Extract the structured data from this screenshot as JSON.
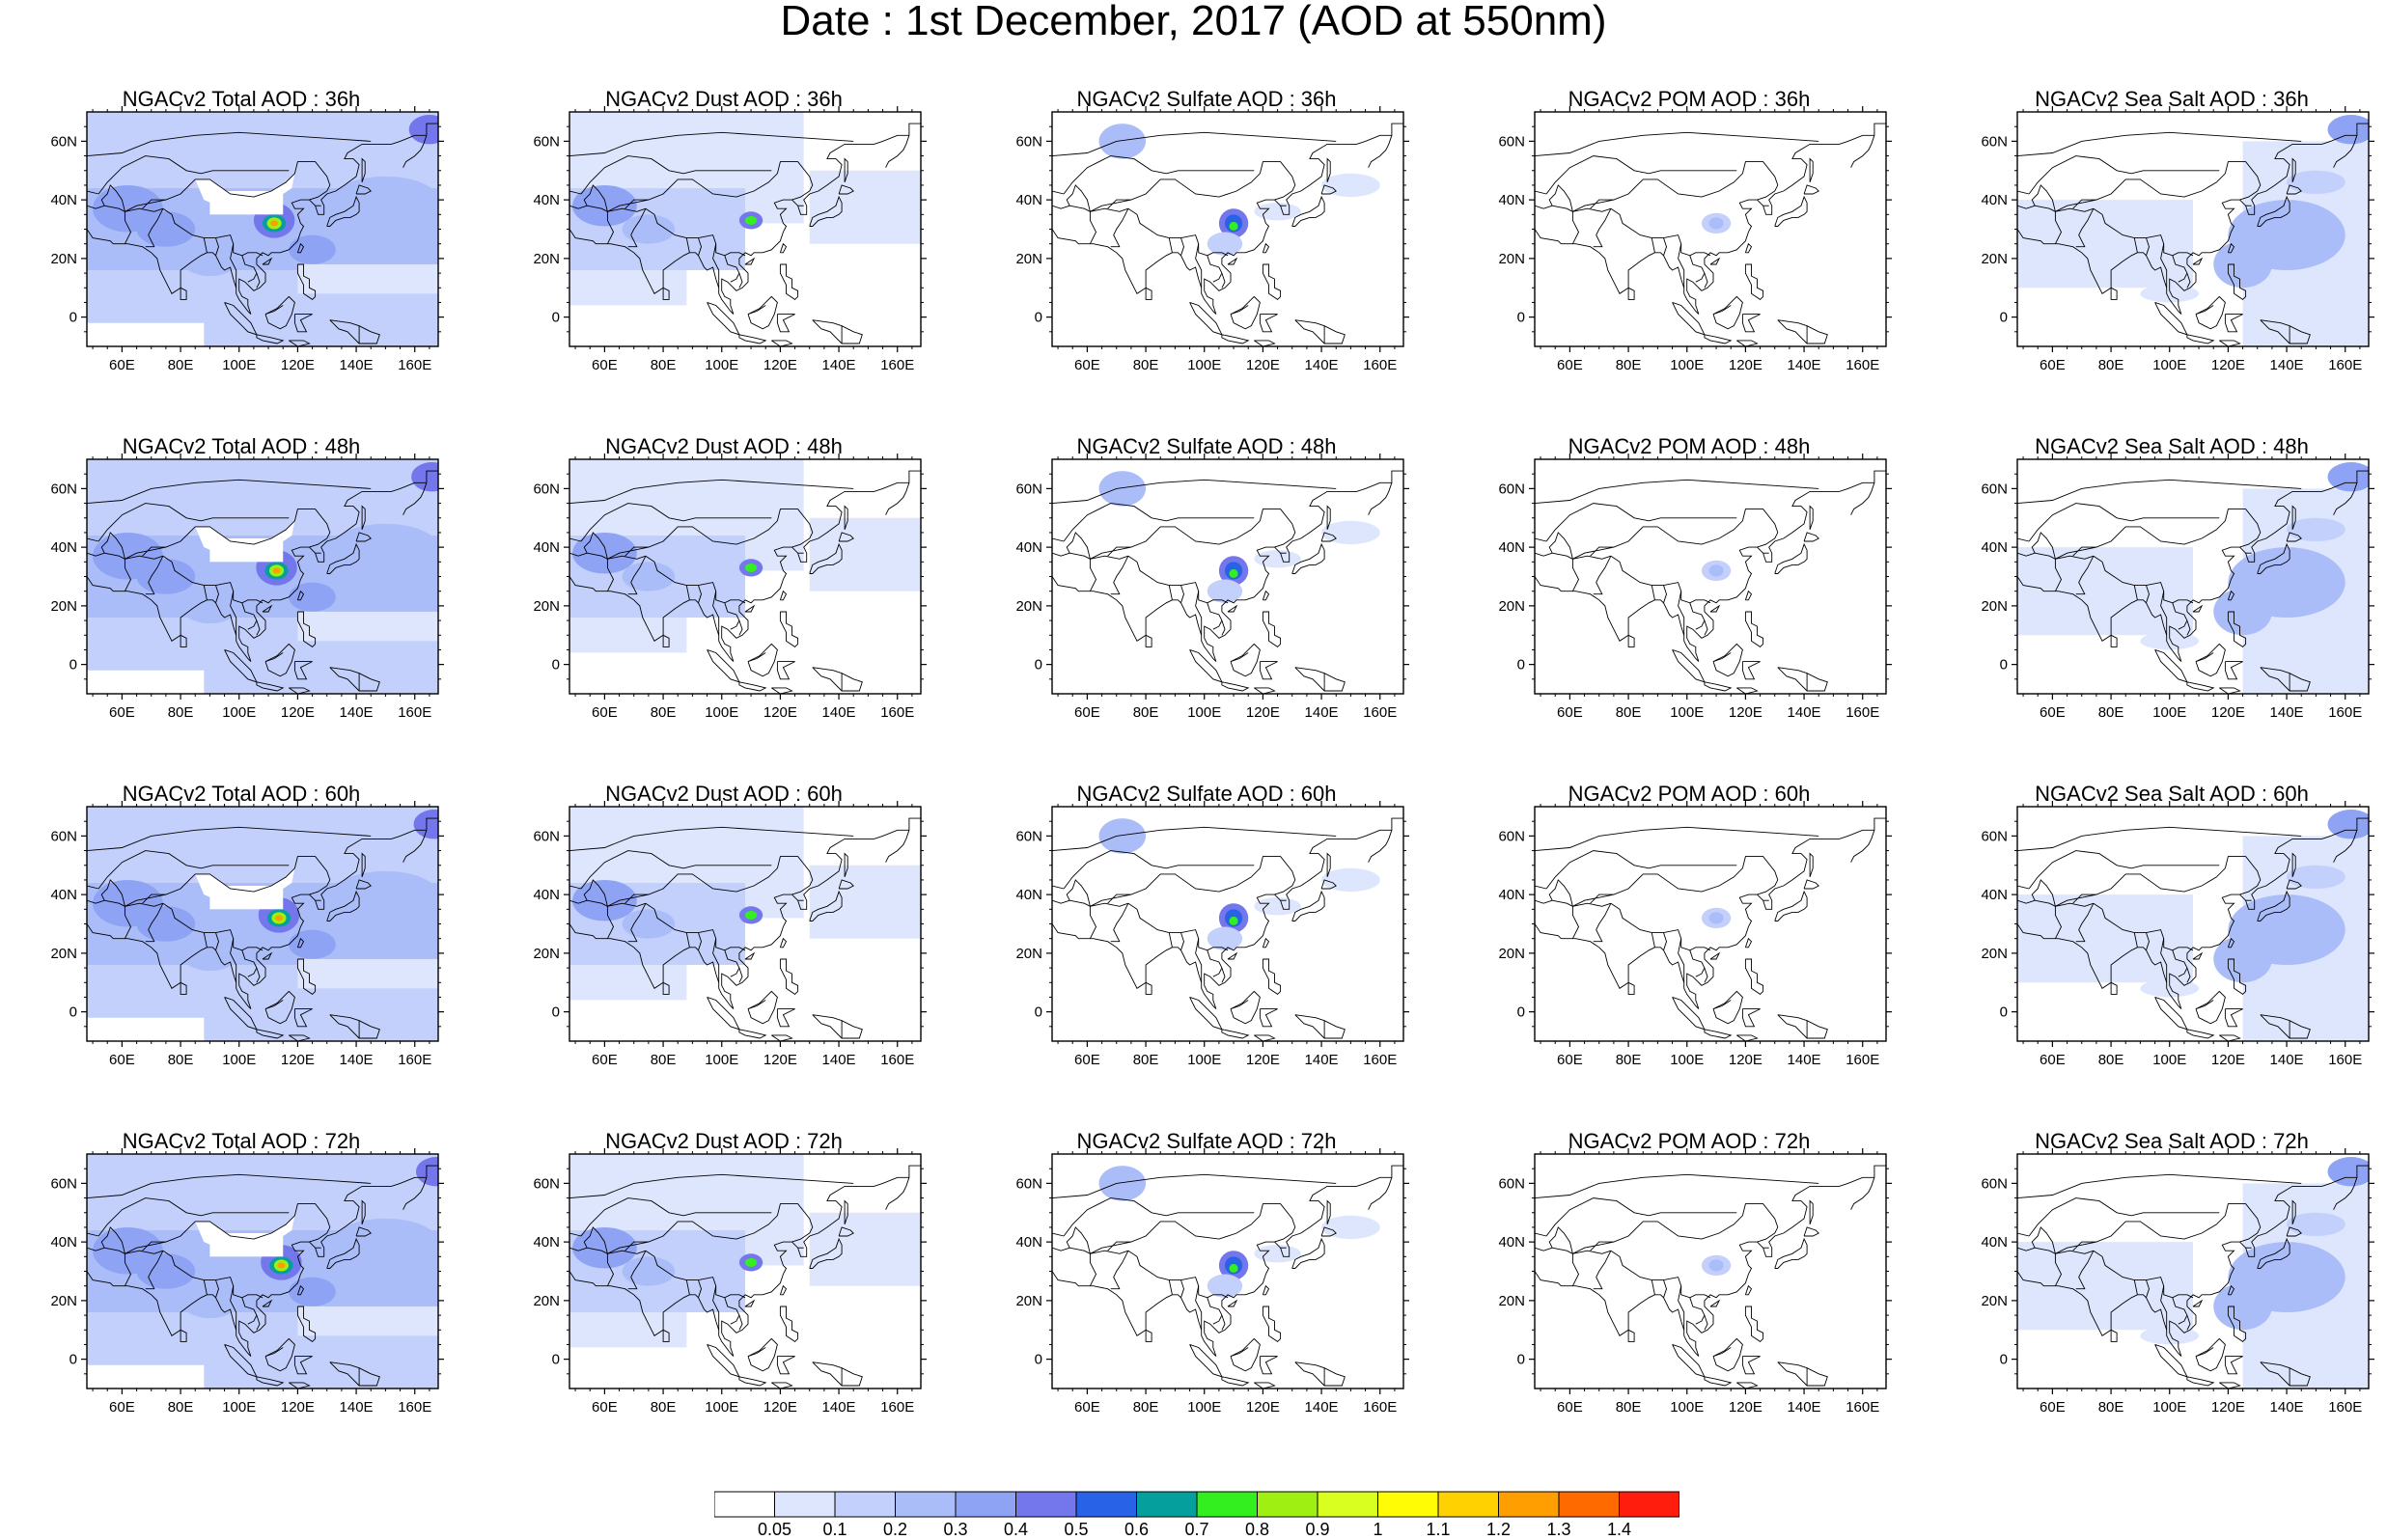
{
  "title": "Date : 1st December, 2017 (AOD at 550nm)",
  "map": {
    "lon_range": [
      48,
      168
    ],
    "lat_range": [
      -10,
      70
    ],
    "lon_ticks": [
      "60E",
      "80E",
      "100E",
      "120E",
      "140E",
      "160E"
    ],
    "lat_ticks": [
      "0",
      "20N",
      "40N",
      "60N"
    ]
  },
  "colorbar": {
    "colors": [
      "#ffffff",
      "#dde6fd",
      "#c2d0fb",
      "#aabdf8",
      "#8fa3f4",
      "#7476ec",
      "#2862e6",
      "#059f9e",
      "#33ef1f",
      "#9ff012",
      "#d9ff21",
      "#fffc06",
      "#ffd100",
      "#ff9e00",
      "#ff6a00",
      "#ff1e0e"
    ],
    "labels": [
      "0.05",
      "0.1",
      "0.2",
      "0.3",
      "0.4",
      "0.5",
      "0.6",
      "0.7",
      "0.8",
      "0.9",
      "1",
      "1.1",
      "1.2",
      "1.3",
      "1.4"
    ]
  },
  "panels": [
    {
      "title": "NGACv2 Total AOD : 36h",
      "variable": "total",
      "lead_hours": 36
    },
    {
      "title": "NGACv2 Dust AOD : 36h",
      "variable": "dust",
      "lead_hours": 36
    },
    {
      "title": "NGACv2 Sulfate AOD : 36h",
      "variable": "sulfate",
      "lead_hours": 36
    },
    {
      "title": "NGACv2 POM AOD : 36h",
      "variable": "pom",
      "lead_hours": 36
    },
    {
      "title": "NGACv2 Sea Salt AOD : 36h",
      "variable": "seasalt",
      "lead_hours": 36
    },
    {
      "title": "NGACv2 Total AOD : 48h",
      "variable": "total",
      "lead_hours": 48
    },
    {
      "title": "NGACv2 Dust AOD : 48h",
      "variable": "dust",
      "lead_hours": 48
    },
    {
      "title": "NGACv2 Sulfate AOD : 48h",
      "variable": "sulfate",
      "lead_hours": 48
    },
    {
      "title": "NGACv2 POM AOD : 48h",
      "variable": "pom",
      "lead_hours": 48
    },
    {
      "title": "NGACv2 Sea Salt AOD : 48h",
      "variable": "seasalt",
      "lead_hours": 48
    },
    {
      "title": "NGACv2 Total AOD : 60h",
      "variable": "total",
      "lead_hours": 60
    },
    {
      "title": "NGACv2 Dust AOD : 60h",
      "variable": "dust",
      "lead_hours": 60
    },
    {
      "title": "NGACv2 Sulfate AOD : 60h",
      "variable": "sulfate",
      "lead_hours": 60
    },
    {
      "title": "NGACv2 POM AOD : 60h",
      "variable": "pom",
      "lead_hours": 60
    },
    {
      "title": "NGACv2 Sea Salt AOD : 60h",
      "variable": "seasalt",
      "lead_hours": 60
    },
    {
      "title": "NGACv2 Total AOD : 72h",
      "variable": "total",
      "lead_hours": 72
    },
    {
      "title": "NGACv2 Dust AOD : 72h",
      "variable": "dust",
      "lead_hours": 72
    },
    {
      "title": "NGACv2 Sulfate AOD : 72h",
      "variable": "sulfate",
      "lead_hours": 72
    },
    {
      "title": "NGACv2 POM AOD : 72h",
      "variable": "pom",
      "lead_hours": 72
    },
    {
      "title": "NGACv2 Sea Salt  AOD : 72h",
      "variable": "seasalt",
      "lead_hours": 72
    }
  ]
}
